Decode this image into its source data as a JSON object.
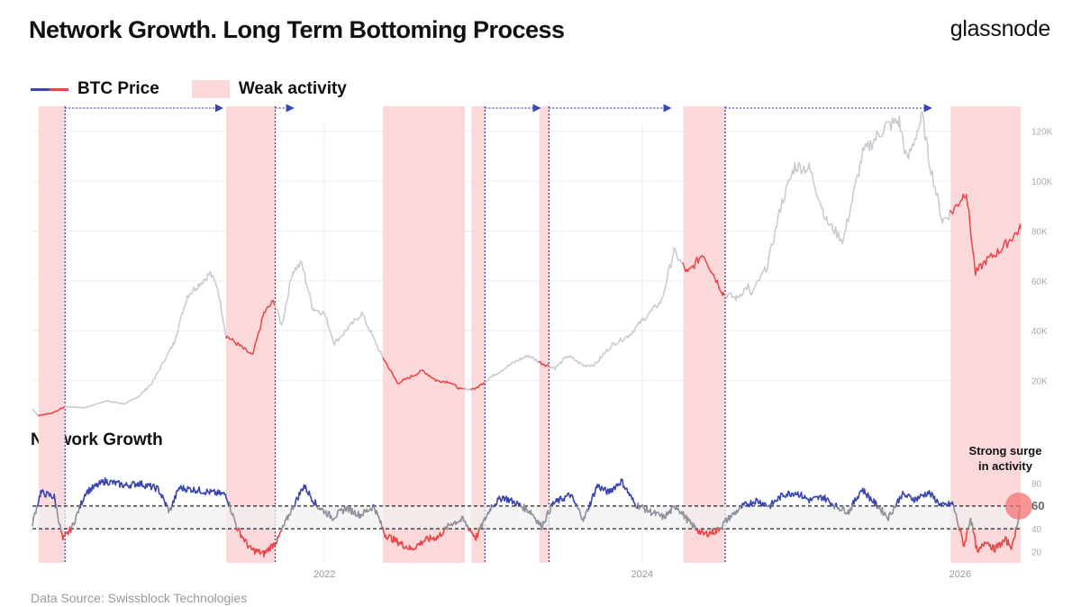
{
  "header": {
    "title": "Network Growth. Long Term Bottoming Process",
    "brand": "glassnode"
  },
  "legend": {
    "price_label": "BTC Price",
    "weak_label": "Weak activity"
  },
  "footer": {
    "source": "Data Source: Swissblock Technologies"
  },
  "colors": {
    "price_normal": "#c7cad1",
    "price_weak": "#e8474a",
    "ng_high": "#3a46b0",
    "ng_mid": "#8e919b",
    "ng_low": "#e8474a",
    "weak_band": "#fbd9da",
    "arrow": "#3a46b0"
  },
  "chart_data": {
    "type": "line",
    "x_range": [
      "2020-03-01",
      "2026-05-20"
    ],
    "x_ticks": [
      "2022",
      "2024",
      "2026"
    ],
    "price_panel": {
      "series_name": "BTC Price",
      "y_range": [
        0,
        130000
      ],
      "y_ticks": [
        "20K",
        "40K",
        "60K",
        "80K",
        "100K",
        "120K"
      ],
      "points": [
        [
          "2020-03-01",
          8500
        ],
        [
          "2020-03-15",
          6000
        ],
        [
          "2020-04-15",
          7000
        ],
        [
          "2020-05-15",
          9500
        ],
        [
          "2020-07-01",
          9200
        ],
        [
          "2020-08-15",
          11800
        ],
        [
          "2020-10-01",
          10700
        ],
        [
          "2020-11-01",
          13800
        ],
        [
          "2020-12-01",
          19000
        ],
        [
          "2021-01-01",
          29000
        ],
        [
          "2021-01-20",
          35000
        ],
        [
          "2021-02-20",
          54000
        ],
        [
          "2021-03-15",
          58000
        ],
        [
          "2021-04-14",
          63000
        ],
        [
          "2021-05-01",
          57000
        ],
        [
          "2021-05-20",
          38000
        ],
        [
          "2021-06-20",
          34000
        ],
        [
          "2021-07-20",
          30000
        ],
        [
          "2021-08-15",
          47000
        ],
        [
          "2021-09-07",
          52000
        ],
        [
          "2021-09-25",
          42000
        ],
        [
          "2021-10-20",
          64000
        ],
        [
          "2021-11-10",
          67000
        ],
        [
          "2021-12-05",
          49000
        ],
        [
          "2022-01-01",
          47000
        ],
        [
          "2022-01-24",
          35000
        ],
        [
          "2022-03-28",
          47000
        ],
        [
          "2022-05-10",
          31000
        ],
        [
          "2022-06-18",
          19000
        ],
        [
          "2022-07-01",
          20000
        ],
        [
          "2022-08-15",
          24000
        ],
        [
          "2022-09-15",
          20000
        ],
        [
          "2022-10-15",
          19500
        ],
        [
          "2022-11-10",
          16500
        ],
        [
          "2022-12-15",
          16800
        ],
        [
          "2023-01-15",
          21000
        ],
        [
          "2023-02-15",
          24500
        ],
        [
          "2023-03-20",
          28000
        ],
        [
          "2023-04-15",
          30000
        ],
        [
          "2023-05-15",
          27000
        ],
        [
          "2023-06-15",
          25000
        ],
        [
          "2023-07-15",
          30000
        ],
        [
          "2023-08-20",
          26000
        ],
        [
          "2023-09-15",
          26500
        ],
        [
          "2023-10-25",
          34500
        ],
        [
          "2023-12-01",
          38000
        ],
        [
          "2024-01-01",
          44000
        ],
        [
          "2024-02-15",
          52000
        ],
        [
          "2024-03-14",
          72000
        ],
        [
          "2024-04-15",
          63000
        ],
        [
          "2024-05-20",
          71000
        ],
        [
          "2024-07-05",
          55000
        ],
        [
          "2024-08-05",
          53000
        ],
        [
          "2024-09-01",
          58000
        ],
        [
          "2024-09-06",
          54000
        ],
        [
          "2024-10-15",
          66000
        ],
        [
          "2024-11-15",
          90000
        ],
        [
          "2024-12-17",
          106000
        ],
        [
          "2025-01-20",
          105000
        ],
        [
          "2025-02-28",
          84000
        ],
        [
          "2025-04-07",
          76000
        ],
        [
          "2025-05-22",
          111000
        ],
        [
          "2025-07-14",
          122000
        ],
        [
          "2025-08-14",
          124000
        ],
        [
          "2025-09-01",
          108000
        ],
        [
          "2025-10-06",
          126000
        ],
        [
          "2025-10-20",
          110000
        ],
        [
          "2025-11-21",
          84000
        ],
        [
          "2025-12-15",
          88000
        ],
        [
          "2026-01-15",
          96000
        ],
        [
          "2026-02-05",
          63000
        ],
        [
          "2026-03-01",
          68000
        ],
        [
          "2026-04-01",
          72000
        ],
        [
          "2026-05-20",
          81000
        ]
      ]
    },
    "network_growth_panel": {
      "title": "Network Growth",
      "y_range": [
        10,
        90
      ],
      "y_ticks": [
        "20",
        "40",
        "60",
        "80"
      ],
      "threshold_lines": [
        60,
        40
      ],
      "threshold_label": "60",
      "points": [
        [
          "2020-03-01",
          45
        ],
        [
          "2020-03-20",
          72
        ],
        [
          "2020-04-20",
          68
        ],
        [
          "2020-05-10",
          30
        ],
        [
          "2020-06-01",
          42
        ],
        [
          "2020-07-01",
          72
        ],
        [
          "2020-08-15",
          82
        ],
        [
          "2020-10-01",
          78
        ],
        [
          "2020-11-01",
          80
        ],
        [
          "2020-12-15",
          75
        ],
        [
          "2021-01-10",
          55
        ],
        [
          "2021-02-01",
          76
        ],
        [
          "2021-03-15",
          74
        ],
        [
          "2021-04-15",
          72
        ],
        [
          "2021-05-20",
          70
        ],
        [
          "2021-06-15",
          40
        ],
        [
          "2021-07-15",
          22
        ],
        [
          "2021-08-15",
          18
        ],
        [
          "2021-09-15",
          30
        ],
        [
          "2021-10-15",
          55
        ],
        [
          "2021-11-15",
          78
        ],
        [
          "2021-12-15",
          60
        ],
        [
          "2022-01-20",
          50
        ],
        [
          "2022-02-20",
          58
        ],
        [
          "2022-03-25",
          52
        ],
        [
          "2022-04-25",
          60
        ],
        [
          "2022-05-20",
          35
        ],
        [
          "2022-06-20",
          28
        ],
        [
          "2022-07-20",
          22
        ],
        [
          "2022-08-20",
          30
        ],
        [
          "2022-09-20",
          33
        ],
        [
          "2022-10-20",
          45
        ],
        [
          "2022-11-15",
          48
        ],
        [
          "2022-12-15",
          32
        ],
        [
          "2023-01-20",
          60
        ],
        [
          "2023-02-15",
          68
        ],
        [
          "2023-03-20",
          62
        ],
        [
          "2023-04-20",
          55
        ],
        [
          "2023-05-15",
          42
        ],
        [
          "2023-06-10",
          62
        ],
        [
          "2023-07-20",
          70
        ],
        [
          "2023-08-20",
          48
        ],
        [
          "2023-09-20",
          78
        ],
        [
          "2023-10-15",
          72
        ],
        [
          "2023-11-15",
          82
        ],
        [
          "2023-12-15",
          62
        ],
        [
          "2024-01-20",
          55
        ],
        [
          "2024-02-20",
          50
        ],
        [
          "2024-03-20",
          60
        ],
        [
          "2024-04-20",
          45
        ],
        [
          "2024-05-20",
          35
        ],
        [
          "2024-06-20",
          38
        ],
        [
          "2024-07-20",
          50
        ],
        [
          "2024-08-20",
          60
        ],
        [
          "2024-09-20",
          65
        ],
        [
          "2024-10-20",
          60
        ],
        [
          "2024-11-20",
          70
        ],
        [
          "2024-12-20",
          72
        ],
        [
          "2025-01-20",
          65
        ],
        [
          "2025-02-20",
          68
        ],
        [
          "2025-03-20",
          60
        ],
        [
          "2025-04-20",
          55
        ],
        [
          "2025-05-20",
          75
        ],
        [
          "2025-06-20",
          62
        ],
        [
          "2025-07-20",
          50
        ],
        [
          "2025-08-20",
          70
        ],
        [
          "2025-09-20",
          66
        ],
        [
          "2025-10-20",
          72
        ],
        [
          "2025-11-20",
          60
        ],
        [
          "2025-12-15",
          62
        ],
        [
          "2026-01-10",
          25
        ],
        [
          "2026-01-25",
          50
        ],
        [
          "2026-02-10",
          18
        ],
        [
          "2026-03-01",
          30
        ],
        [
          "2026-03-20",
          22
        ],
        [
          "2026-04-15",
          30
        ],
        [
          "2026-05-01",
          24
        ],
        [
          "2026-05-20",
          60
        ]
      ]
    },
    "weak_activity_periods": [
      [
        "2020-03-15",
        "2020-05-15"
      ],
      [
        "2021-05-20",
        "2021-09-10"
      ],
      [
        "2022-05-15",
        "2022-11-20"
      ],
      [
        "2022-12-05",
        "2023-01-05"
      ],
      [
        "2023-05-10",
        "2023-06-01"
      ],
      [
        "2024-04-05",
        "2024-07-10"
      ],
      [
        "2025-12-10",
        "2026-05-20"
      ]
    ],
    "growth_phase_arrows": [
      [
        "2020-05-15",
        "2021-05-10"
      ],
      [
        "2021-09-10",
        "2021-10-20"
      ],
      [
        "2023-01-05",
        "2023-05-10"
      ],
      [
        "2023-06-01",
        "2024-03-05"
      ],
      [
        "2024-07-10",
        "2025-10-25"
      ]
    ],
    "annotation": {
      "text": [
        "Strong surge",
        "in activity"
      ],
      "at": [
        "2026-05-20",
        60
      ]
    }
  }
}
